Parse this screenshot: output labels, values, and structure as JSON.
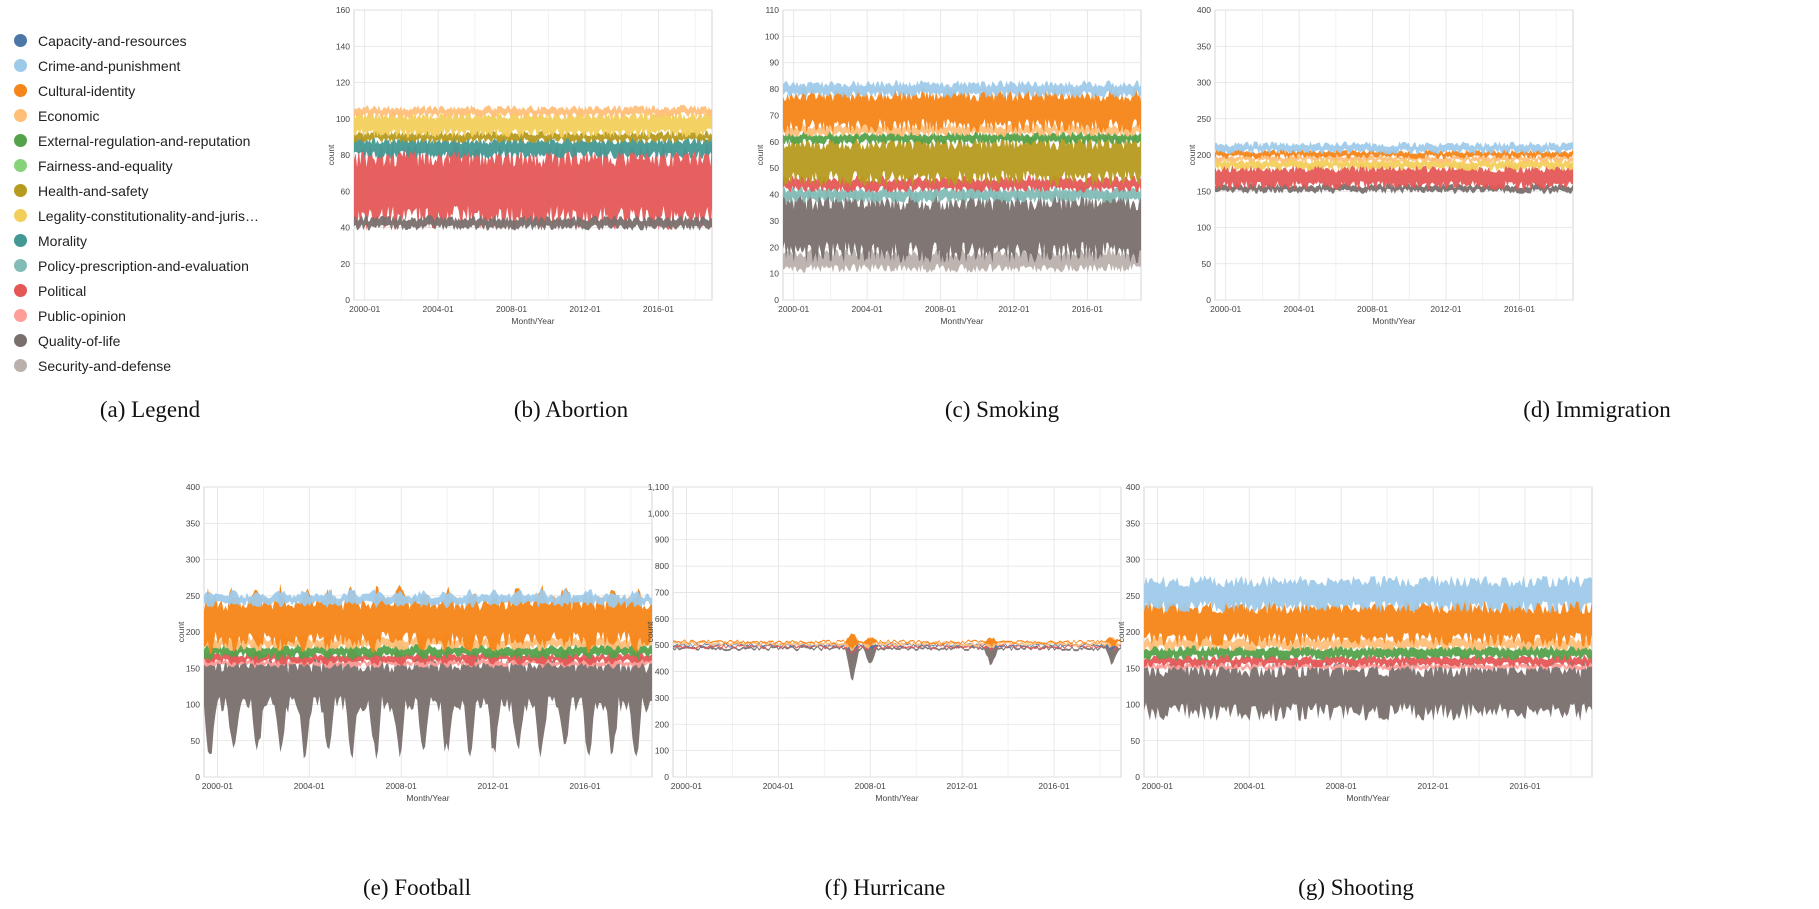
{
  "legend": {
    "items": [
      {
        "label": "Capacity-and-resources",
        "color": "#4c78a8"
      },
      {
        "label": "Crime-and-punishment",
        "color": "#9ecae9"
      },
      {
        "label": "Cultural-identity",
        "color": "#f58518"
      },
      {
        "label": "Economic",
        "color": "#ffbf79"
      },
      {
        "label": "External-regulation-and-reputation",
        "color": "#54a24b"
      },
      {
        "label": "Fairness-and-equality",
        "color": "#88d27a"
      },
      {
        "label": "Health-and-safety",
        "color": "#b79a20"
      },
      {
        "label": "Legality-constitutionality-and-juris…",
        "color": "#f2cf5b"
      },
      {
        "label": "Morality",
        "color": "#439894"
      },
      {
        "label": "Policy-prescription-and-evaluation",
        "color": "#83bcb6"
      },
      {
        "label": "Political",
        "color": "#e45756"
      },
      {
        "label": "Public-opinion",
        "color": "#ff9d98"
      },
      {
        "label": "Quality-of-life",
        "color": "#79706e"
      },
      {
        "label": "Security-and-defense",
        "color": "#bab0ac"
      }
    ]
  },
  "captions": {
    "a": "(a) Legend",
    "b": "(b) Abortion",
    "c": "(c) Smoking",
    "d": "(d) Immigration",
    "e": "(e) Football",
    "f": "(f) Hurricane",
    "g": "(g) Shooting"
  },
  "chart_data": [
    {
      "id": "abortion",
      "type": "area",
      "stacked": true,
      "xlabel": "Month/Year",
      "ylabel": "count",
      "x_ticks": [
        "2000-01",
        "2004-01",
        "2008-01",
        "2012-01",
        "2016-01"
      ],
      "y_ticks": [
        "0",
        "20",
        "40",
        "60",
        "80",
        "100",
        "120",
        "140",
        "160"
      ],
      "ylim": [
        0,
        160
      ],
      "xlim": [
        "1999-06",
        "2018-12"
      ],
      "grid": true,
      "approx_bands": [
        {
          "series": "Political",
          "lower": 45,
          "upper": 80
        },
        {
          "series": "Quality-of-life",
          "lower": 40,
          "upper": 45
        },
        {
          "series": "Morality",
          "lower": 80,
          "upper": 88
        },
        {
          "series": "Health-and-safety",
          "lower": 88,
          "upper": 92
        },
        {
          "series": "Legality-constitutionality-and-juris…",
          "lower": 92,
          "upper": 102
        },
        {
          "series": "Economic",
          "lower": 102,
          "upper": 106
        }
      ]
    },
    {
      "id": "smoking",
      "type": "area",
      "stacked": true,
      "xlabel": "Month/Year",
      "ylabel": "count",
      "x_ticks": [
        "2000-01",
        "2004-01",
        "2008-01",
        "2012-01",
        "2016-01"
      ],
      "y_ticks": [
        "0",
        "10",
        "20",
        "30",
        "40",
        "50",
        "60",
        "70",
        "80",
        "90",
        "100",
        "110"
      ],
      "ylim": [
        0,
        110
      ],
      "xlim": [
        "1999-06",
        "2018-12"
      ],
      "grid": true,
      "approx_bands": [
        {
          "series": "Security-and-defense",
          "lower": 12,
          "upper": 18
        },
        {
          "series": "Quality-of-life",
          "lower": 18,
          "upper": 38
        },
        {
          "series": "Policy-prescription-and-evaluation",
          "lower": 38,
          "upper": 42
        },
        {
          "series": "Political",
          "lower": 42,
          "upper": 46
        },
        {
          "series": "Health-and-safety",
          "lower": 46,
          "upper": 60
        },
        {
          "series": "External-regulation-and-reputation",
          "lower": 60,
          "upper": 63
        },
        {
          "series": "Economic",
          "lower": 63,
          "upper": 66
        },
        {
          "series": "Cultural-identity",
          "lower": 66,
          "upper": 78
        },
        {
          "series": "Crime-and-punishment",
          "lower": 78,
          "upper": 82
        }
      ]
    },
    {
      "id": "immigration",
      "type": "area",
      "stacked": true,
      "xlabel": "Month/Year",
      "ylabel": "count",
      "x_ticks": [
        "2000-01",
        "2004-01",
        "2008-01",
        "2012-01",
        "2016-01"
      ],
      "y_ticks": [
        "0",
        "50",
        "100",
        "150",
        "200",
        "250",
        "300",
        "350",
        "400"
      ],
      "ylim": [
        0,
        400
      ],
      "xlim": [
        "1999-06",
        "2018-12"
      ],
      "grid": true,
      "approx_bands": [
        {
          "series": "Quality-of-life",
          "lower": 150,
          "upper": 158
        },
        {
          "series": "Political",
          "lower": 158,
          "upper": 182
        },
        {
          "series": "Legality-constitutionality-and-juris…",
          "lower": 182,
          "upper": 192
        },
        {
          "series": "Economic",
          "lower": 192,
          "upper": 198
        },
        {
          "series": "Cultural-identity",
          "lower": 198,
          "upper": 205
        },
        {
          "series": "Crime-and-punishment",
          "lower": 205,
          "upper": 215
        }
      ]
    },
    {
      "id": "football",
      "type": "area",
      "stacked": true,
      "xlabel": "Month/Year",
      "ylabel": "count",
      "x_ticks": [
        "2000-01",
        "2004-01",
        "2008-01",
        "2012-01",
        "2016-01"
      ],
      "y_ticks": [
        "0",
        "50",
        "100",
        "150",
        "200",
        "250",
        "300",
        "350",
        "400"
      ],
      "ylim": [
        0,
        400
      ],
      "xlim": [
        "1999-06",
        "2018-12"
      ],
      "grid": true,
      "approx_bands": [
        {
          "series": "Quality-of-life",
          "lower": 100,
          "upper": 155
        },
        {
          "series": "Public-opinion",
          "lower": 155,
          "upper": 160
        },
        {
          "series": "Political",
          "lower": 160,
          "upper": 168
        },
        {
          "series": "External-regulation-and-reputation",
          "lower": 168,
          "upper": 180
        },
        {
          "series": "Economic",
          "lower": 180,
          "upper": 190
        },
        {
          "series": "Cultural-identity",
          "lower": 190,
          "upper": 240
        },
        {
          "series": "Crime-and-punishment",
          "lower": 240,
          "upper": 250
        }
      ]
    },
    {
      "id": "hurricane",
      "type": "area",
      "stacked": true,
      "xlabel": "Month/Year",
      "ylabel": "count",
      "x_ticks": [
        "2000-01",
        "2004-01",
        "2008-01",
        "2012-01",
        "2016-01"
      ],
      "y_ticks": [
        "0",
        "100",
        "200",
        "300",
        "400",
        "500",
        "600",
        "700",
        "800",
        "900",
        "1,000",
        "1,100"
      ],
      "ylim": [
        0,
        1100
      ],
      "xlim": [
        "1999-06",
        "2018-12"
      ],
      "grid": true,
      "approx_bands": [
        {
          "series": "Quality-of-life",
          "lower": 485,
          "upper": 492
        },
        {
          "series": "Political",
          "lower": 492,
          "upper": 498
        },
        {
          "series": "Capacity-and-resources",
          "lower": 498,
          "upper": 502
        },
        {
          "series": "Economic",
          "lower": 502,
          "upper": 510
        },
        {
          "series": "Cultural-identity",
          "lower": 510,
          "upper": 515
        }
      ]
    },
    {
      "id": "shooting",
      "type": "area",
      "stacked": true,
      "xlabel": "Month/Year",
      "ylabel": "count",
      "x_ticks": [
        "2000-01",
        "2004-01",
        "2008-01",
        "2012-01",
        "2016-01"
      ],
      "y_ticks": [
        "0",
        "50",
        "100",
        "150",
        "200",
        "250",
        "300",
        "350",
        "400"
      ],
      "ylim": [
        0,
        400
      ],
      "xlim": [
        "1999-06",
        "2018-12"
      ],
      "grid": true,
      "approx_bands": [
        {
          "series": "Quality-of-life",
          "lower": 90,
          "upper": 150
        },
        {
          "series": "Public-opinion",
          "lower": 150,
          "upper": 155
        },
        {
          "series": "Political",
          "lower": 155,
          "upper": 165
        },
        {
          "series": "External-regulation-and-reputation",
          "lower": 165,
          "upper": 178
        },
        {
          "series": "Economic",
          "lower": 178,
          "upper": 190
        },
        {
          "series": "Cultural-identity",
          "lower": 190,
          "upper": 235
        },
        {
          "series": "Crime-and-punishment",
          "lower": 235,
          "upper": 270
        }
      ]
    }
  ]
}
